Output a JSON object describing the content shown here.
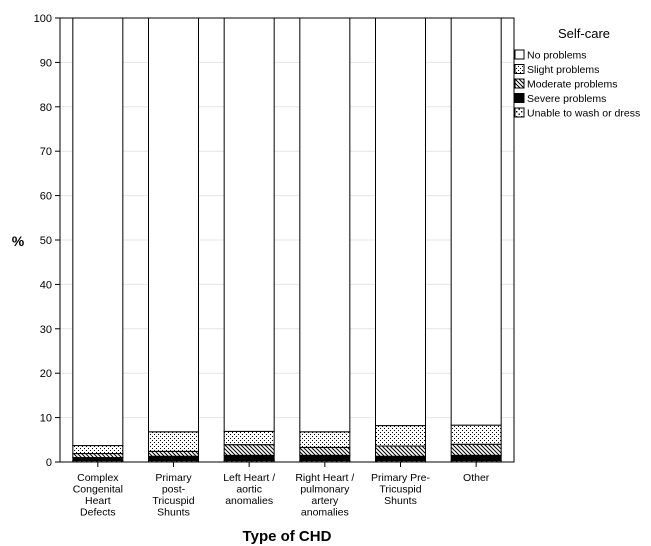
{
  "chart_data": {
    "type": "bar",
    "stacked": true,
    "percent": true,
    "xlabel": "Type of CHD",
    "ylabel": "%",
    "ylim": [
      0,
      100
    ],
    "yticks": [
      0,
      10,
      20,
      30,
      40,
      50,
      60,
      70,
      80,
      90,
      100
    ],
    "grid": true,
    "legend_title": "Self-care",
    "legend_position": "top-right",
    "categories": [
      [
        "Complex",
        "Congenital",
        "Heart",
        "Defects"
      ],
      [
        "Primary",
        "post-",
        "Tricuspid",
        "Shunts"
      ],
      [
        "Left Heart /",
        "aortic",
        "anomalies"
      ],
      [
        "Right Heart /",
        "pulmonary",
        "artery",
        "anomalies"
      ],
      [
        "Primary Pre-",
        "Tricuspid",
        "Shunts"
      ],
      [
        "Other"
      ]
    ],
    "series": [
      {
        "name": "Unable to wash or dress",
        "pattern": "dots-sparse",
        "values": [
          0.3,
          0.3,
          0.3,
          0.3,
          0.3,
          0.3
        ]
      },
      {
        "name": "Severe problems",
        "pattern": "solid-black",
        "values": [
          0.7,
          1.0,
          1.2,
          1.2,
          1.0,
          1.2
        ]
      },
      {
        "name": "Moderate problems",
        "pattern": "diagonal",
        "values": [
          0.9,
          1.1,
          2.4,
          1.8,
          2.3,
          2.5
        ]
      },
      {
        "name": "Slight problems",
        "pattern": "dots-dense",
        "values": [
          1.8,
          4.4,
          3.0,
          3.5,
          4.6,
          4.3
        ]
      },
      {
        "name": "No problems",
        "pattern": "white",
        "values": [
          96.3,
          93.2,
          93.1,
          93.2,
          91.8,
          91.7
        ]
      }
    ],
    "legend_order": [
      "No problems",
      "Slight problems",
      "Moderate problems",
      "Severe problems",
      "Unable to wash or dress"
    ]
  }
}
